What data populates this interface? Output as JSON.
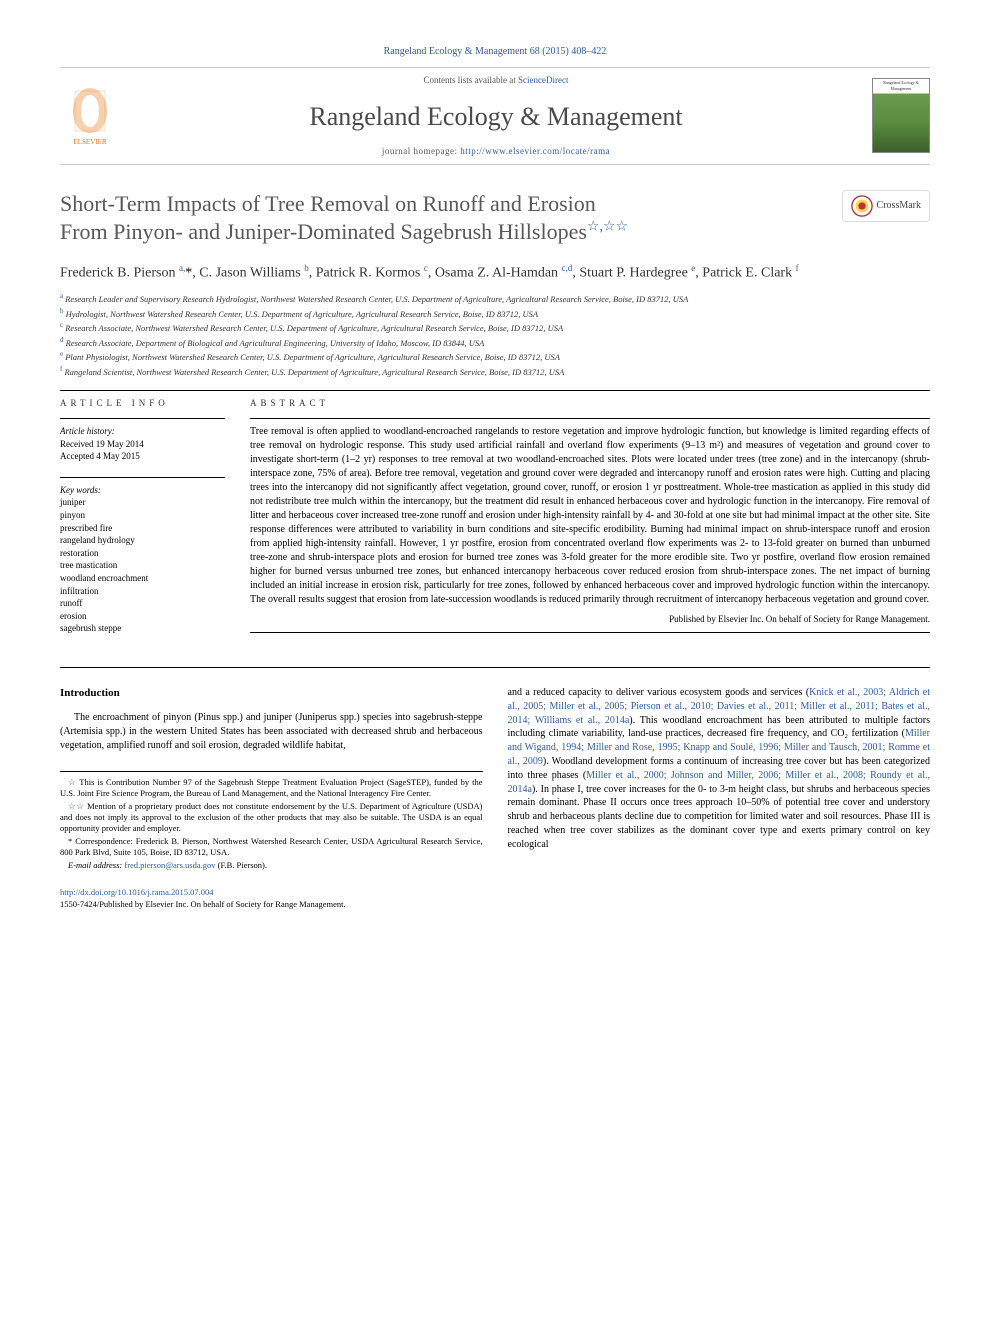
{
  "top_citation": "Rangeland Ecology & Management 68 (2015) 408–422",
  "header": {
    "contents_line_prefix": "Contents lists available at ",
    "contents_link": "ScienceDirect",
    "journal_title": "Rangeland Ecology & Management",
    "homepage_prefix": "journal homepage: ",
    "homepage_url": "http://www.elsevier.com/locate/rama",
    "elsevier_label": "ELSEVIER",
    "cover_label": "Rangeland Ecology & Management"
  },
  "crossmark_label": "CrossMark",
  "title_line1": "Short-Term Impacts of Tree Removal on Runoff and Erosion",
  "title_line2": "From Pinyon- and Juniper-Dominated Sagebrush Hillslopes",
  "title_stars": "☆,☆☆",
  "authors_html": "Frederick B. Pierson <sup>a,</sup><span class='ast'>*</span>, C. Jason Williams <sup>b</sup>, Patrick R. Kormos <sup>c</sup>, Osama Z. Al-Hamdan <sup>c,d</sup>, Stuart P. Hardegree <sup>e</sup>, Patrick E. Clark <sup>f</sup>",
  "affiliations": [
    {
      "sup": "a",
      "text": "Research Leader and Supervisory Research Hydrologist, Northwest Watershed Research Center, U.S. Department of Agriculture, Agricultural Research Service, Boise, ID 83712, USA"
    },
    {
      "sup": "b",
      "text": "Hydrologist, Northwest Watershed Research Center, U.S. Department of Agriculture, Agricultural Research Service, Boise, ID 83712, USA"
    },
    {
      "sup": "c",
      "text": "Research Associate, Northwest Watershed Research Center, U.S. Department of Agriculture, Agricultural Research Service, Boise, ID 83712, USA"
    },
    {
      "sup": "d",
      "text": "Research Associate, Department of Biological and Agricultural Engineering, University of Idaho, Moscow, ID 83844, USA"
    },
    {
      "sup": "e",
      "text": "Plant Physiologist, Northwest Watershed Research Center, U.S. Department of Agriculture, Agricultural Research Service, Boise, ID 83712, USA"
    },
    {
      "sup": "f",
      "text": "Rangeland Scientist, Northwest Watershed Research Center, U.S. Department of Agriculture, Agricultural Research Service, Boise, ID 83712, USA"
    }
  ],
  "article_info": {
    "heading": "article info",
    "history_label": "Article history:",
    "received": "Received 19 May 2014",
    "accepted": "Accepted 4 May 2015",
    "keywords_label": "Key words:",
    "keywords": [
      "juniper",
      "pinyon",
      "prescribed fire",
      "rangeland hydrology",
      "restoration",
      "tree mastication",
      "woodland encroachment",
      "infiltration",
      "runoff",
      "erosion",
      "sagebrush steppe"
    ]
  },
  "abstract": {
    "heading": "abstract",
    "text": "Tree removal is often applied to woodland-encroached rangelands to restore vegetation and improve hydrologic function, but knowledge is limited regarding effects of tree removal on hydrologic response. This study used artificial rainfall and overland flow experiments (9–13 m²) and measures of vegetation and ground cover to investigate short-term (1–2 yr) responses to tree removal at two woodland-encroached sites. Plots were located under trees (tree zone) and in the intercanopy (shrub-interspace zone, 75% of area). Before tree removal, vegetation and ground cover were degraded and intercanopy runoff and erosion rates were high. Cutting and placing trees into the intercanopy did not significantly affect vegetation, ground cover, runoff, or erosion 1 yr posttreatment. Whole-tree mastication as applied in this study did not redistribute tree mulch within the intercanopy, but the treatment did result in enhanced herbaceous cover and hydrologic function in the intercanopy. Fire removal of litter and herbaceous cover increased tree-zone runoff and erosion under high-intensity rainfall by 4- and 30-fold at one site but had minimal impact at the other site. Site response differences were attributed to variability in burn conditions and site-specific erodibility. Burning had minimal impact on shrub-interspace runoff and erosion from applied high-intensity rainfall. However, 1 yr postfire, erosion from concentrated overland flow experiments was 2- to 13-fold greater on burned than unburned tree-zone and shrub-interspace plots and erosion for burned tree zones was 3-fold greater for the more erodible site. Two yr postfire, overland flow erosion remained higher for burned versus unburned tree zones, but enhanced intercanopy herbaceous cover reduced erosion from shrub-interspace zones. The net impact of burning included an initial increase in erosion risk, particularly for tree zones, followed by enhanced herbaceous cover and improved hydrologic function within the intercanopy. The overall results suggest that erosion from late-succession woodlands is reduced primarily through recruitment of intercanopy herbaceous vegetation and ground cover.",
    "publisher_line": "Published by Elsevier Inc. On behalf of Society for Range Management."
  },
  "introduction": {
    "heading": "Introduction",
    "col1_p1": "The encroachment of pinyon (Pinus spp.) and juniper (Juniperus spp.) species into sagebrush-steppe (Artemisia spp.) in the western United States has been associated with decreased shrub and herbaceous vegetation, amplified runoff and soil erosion, degraded wildlife habitat,",
    "col2_p1_pre": "and a reduced capacity to deliver various ecosystem goods and services (",
    "col2_p1_link1": "Knick et al., 2003; Aldrich et al., 2005; Miller et al., 2005; Pierson et al., 2010; Davies et al., 2011; Miller et al., 2011; Bates et al., 2014; Williams et al., 2014a",
    "col2_p1_mid1": "). This woodland encroachment has been attributed to multiple factors including climate variability, land-use practices, decreased fire frequency, and CO₂ fertilization (",
    "col2_p1_link2": "Miller and Wigand, 1994; Miller and Rose, 1995; Knapp and Soulé, 1996; Miller and Tausch, 2001; Romme et al., 2009",
    "col2_p1_mid2": "). Woodland development forms a continuum of increasing tree cover but has been categorized into three phases (",
    "col2_p1_link3": "Miller et al., 2000; Johnson and Miller, 2006; Miller et al., 2008; Roundy et al., 2014a",
    "col2_p1_tail": "). In phase I, tree cover increases for the 0- to 3-m height class, but shrubs and herbaceous species remain dominant. Phase II occurs once trees approach 10–50% of potential tree cover and understory shrub and herbaceous plants decline due to competition for limited water and soil resources. Phase III is reached when tree cover stabilizes as the dominant cover type and exerts primary control on key ecological"
  },
  "footnotes": {
    "fn1_star": "☆",
    "fn1": "This is Contribution Number 97 of the Sagebrush Steppe Treatment Evaluation Project (SageSTEP), funded by the U.S. Joint Fire Science Program, the Bureau of Land Management, and the National Interagency Fire Center.",
    "fn2_star": "☆☆",
    "fn2": "Mention of a proprietary product does not constitute endorsement by the U.S. Department of Agriculture (USDA) and does not imply its approval to the exclusion of the other products that may also be suitable. The USDA is an equal opportunity provider and employer.",
    "fn3_star": "*",
    "fn3": "Correspondence: Frederick B. Pierson, Northwest Watershed Research Center, USDA Agricultural Research Service, 800 Park Blvd, Suite 105, Boise, ID 83712, USA.",
    "email_label": "E-mail address: ",
    "email": "fred.pierson@ars.usda.gov",
    "email_suffix": " (F.B. Pierson)."
  },
  "doi": {
    "url": "http://dx.doi.org/10.1016/j.rama.2015.07.004",
    "issn_line": "1550-7424/Published by Elsevier Inc. On behalf of Society for Range Management."
  },
  "colors": {
    "link": "#2d5ca6",
    "title_gray": "#585858",
    "elsevier_orange": "#e77817"
  }
}
